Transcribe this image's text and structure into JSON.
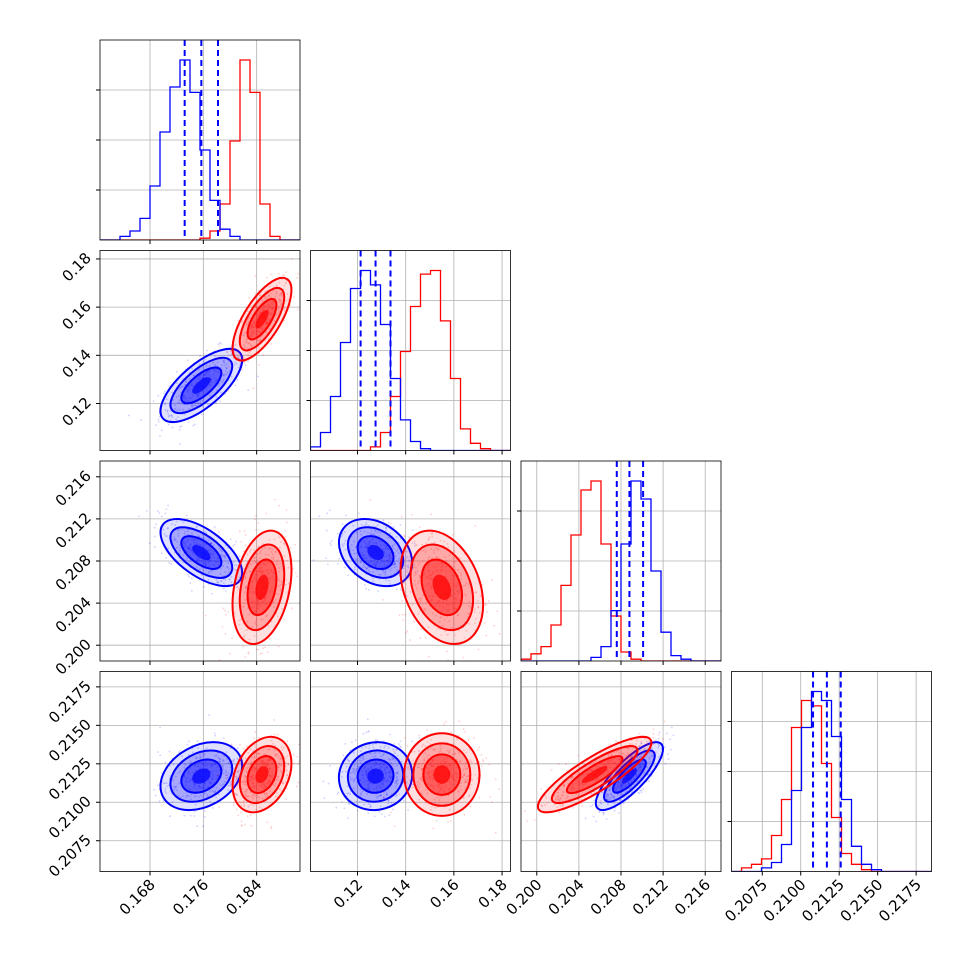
{
  "colors": {
    "series_a": "#0000ff",
    "series_b": "#ff0000",
    "grid": "#b0b0b0",
    "axes": "#000000"
  },
  "chart_data": {
    "type": "corner",
    "parameters": 4,
    "grid": true,
    "legend": "none",
    "ranges": [
      [
        0.1605,
        0.1905
      ],
      [
        0.1005,
        0.1835
      ],
      [
        0.1985,
        0.2175
      ],
      [
        0.2055,
        0.2185
      ]
    ],
    "tick_values": [
      [
        0.168,
        0.176,
        0.184
      ],
      [
        0.12,
        0.14,
        0.16,
        0.18
      ],
      [
        0.2,
        0.204,
        0.208,
        0.212,
        0.216
      ],
      [
        0.2075,
        0.21,
        0.2125,
        0.215,
        0.2175
      ]
    ],
    "tick_labels": [
      [
        "0.168",
        "0.176",
        "0.184"
      ],
      [
        "0.12",
        "0.14",
        "0.16",
        "0.18"
      ],
      [
        "0.200",
        "0.204",
        "0.208",
        "0.212",
        "0.216"
      ],
      [
        "0.2075",
        "0.2100",
        "0.2125",
        "0.2150",
        "0.2175"
      ]
    ],
    "series": [
      {
        "color": "#0000ff",
        "means": [
          0.1757,
          0.1275,
          0.2088,
          0.2117
        ],
        "stds": [
          0.0025,
          0.0062,
          0.0013,
          0.0009
        ],
        "correlations": {
          "0-1": 0.7,
          "0-2": -0.6,
          "0-3": 0.3,
          "1-2": -0.3,
          "1-3": 0.05,
          "2-3": 0.8
        },
        "quantile_lines": [
          [
            0.1732,
            0.1757,
            0.1782
          ],
          [
            0.1213,
            0.1275,
            0.1337
          ],
          [
            0.2076,
            0.2088,
            0.2101
          ],
          [
            0.2108,
            0.2117,
            0.2126
          ]
        ]
      },
      {
        "color": "#ff0000",
        "means": [
          0.1848,
          0.155,
          0.2055,
          0.2118
        ],
        "stds": [
          0.0018,
          0.007,
          0.0022,
          0.001
        ],
        "correlations": {
          "0-1": 0.7,
          "0-2": 0.3,
          "0-3": 0.3,
          "1-2": -0.3,
          "1-3": 0.0,
          "2-3": 0.85
        }
      }
    ],
    "hist_bins": {
      "series_a": [
        [
          0,
          0,
          0.02,
          0.05,
          0.12,
          0.3,
          0.6,
          0.85,
          1.0,
          0.82,
          0.5,
          0.22,
          0.06,
          0.02,
          0,
          0,
          0,
          0,
          0,
          0
        ],
        [
          0.02,
          0.1,
          0.3,
          0.6,
          0.9,
          1.0,
          0.92,
          0.7,
          0.4,
          0.17,
          0.05,
          0.01,
          0,
          0,
          0,
          0,
          0,
          0,
          0,
          0
        ],
        [
          0,
          0,
          0,
          0,
          0,
          0,
          0,
          0.02,
          0.08,
          0.28,
          0.65,
          1.0,
          0.9,
          0.5,
          0.16,
          0.03,
          0.01,
          0,
          0,
          0
        ],
        [
          0,
          0,
          0,
          0.02,
          0.05,
          0.15,
          0.45,
          0.8,
          1.0,
          0.95,
          0.75,
          0.4,
          0.14,
          0.04,
          0.01,
          0,
          0,
          0,
          0,
          0
        ]
      ],
      "series_b": [
        [
          0,
          0,
          0,
          0,
          0,
          0,
          0,
          0,
          0,
          0,
          0.01,
          0.05,
          0.2,
          0.55,
          1.0,
          0.82,
          0.2,
          0.02,
          0,
          0
        ],
        [
          0,
          0,
          0,
          0,
          0,
          0,
          0.02,
          0.1,
          0.3,
          0.55,
          0.8,
          0.98,
          1.0,
          0.72,
          0.4,
          0.12,
          0.04,
          0.01,
          0,
          0
        ],
        [
          0.01,
          0.04,
          0.08,
          0.2,
          0.42,
          0.7,
          0.95,
          1.0,
          0.65,
          0.25,
          0.05,
          0.01,
          0,
          0,
          0,
          0,
          0,
          0,
          0,
          0
        ],
        [
          0,
          0.02,
          0.04,
          0.07,
          0.2,
          0.4,
          0.8,
          0.95,
          0.92,
          0.6,
          0.3,
          0.1,
          0.04,
          0.01,
          0,
          0,
          0,
          0,
          0,
          0
        ]
      ]
    },
    "title": "",
    "xlabel": "",
    "ylabel": ""
  }
}
